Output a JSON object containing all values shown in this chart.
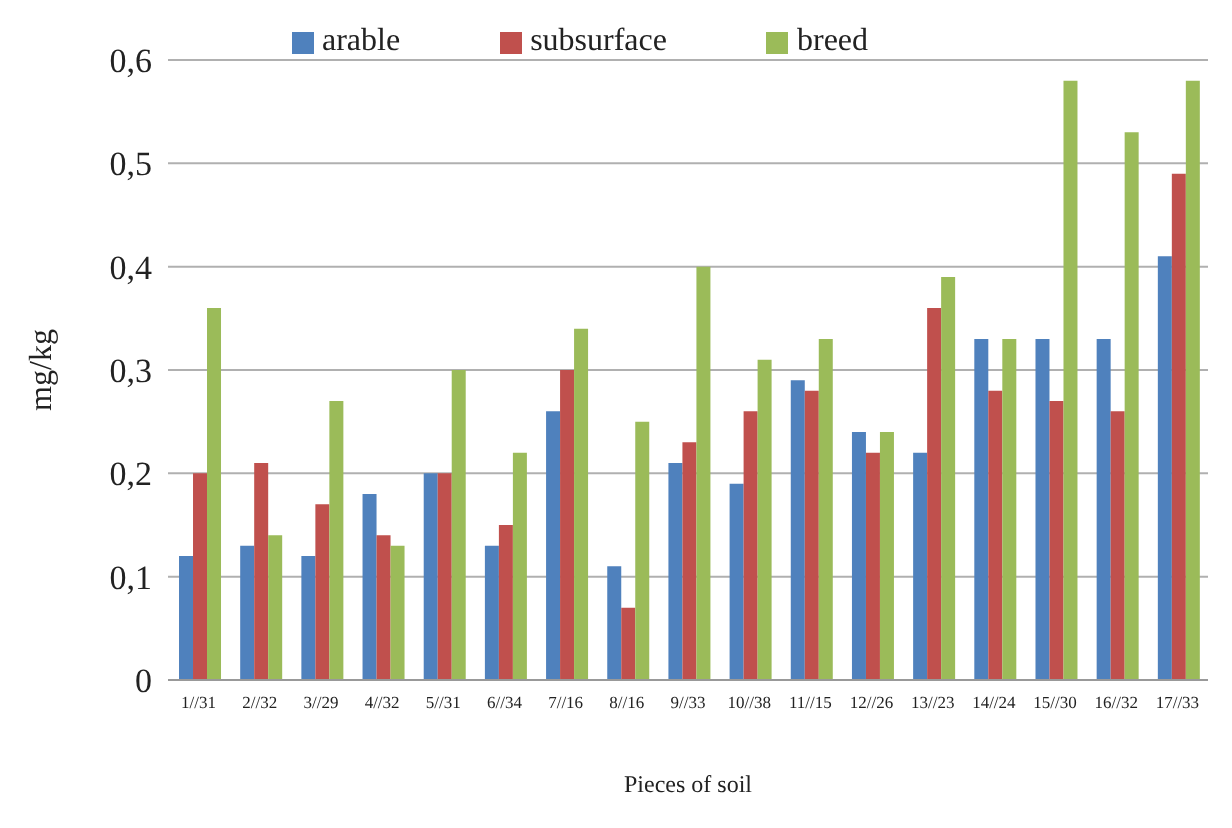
{
  "chart_data": {
    "type": "bar",
    "xlabel": "Pieces of soil",
    "ylabel": "mg/kg",
    "categories": [
      "1//31",
      "2//32",
      "3//29",
      "4//32",
      "5//31",
      "6//34",
      "7//16",
      "8//16",
      "9//33",
      "10//38",
      "11//15",
      "12//26",
      "13//23",
      "14//24",
      "15//30",
      "16//32",
      "17//33"
    ],
    "series": [
      {
        "name": "arable",
        "color": "#4f81bd",
        "values": [
          0.12,
          0.13,
          0.12,
          0.18,
          0.2,
          0.13,
          0.26,
          0.11,
          0.21,
          0.19,
          0.29,
          0.24,
          0.22,
          0.33,
          0.33,
          0.33,
          0.41
        ]
      },
      {
        "name": "subsurface",
        "color": "#c0504d",
        "values": [
          0.2,
          0.21,
          0.17,
          0.14,
          0.2,
          0.15,
          0.3,
          0.07,
          0.23,
          0.26,
          0.28,
          0.22,
          0.36,
          0.28,
          0.27,
          0.26,
          0.49
        ]
      },
      {
        "name": "breed",
        "color": "#9bbb59",
        "values": [
          0.36,
          0.14,
          0.27,
          0.13,
          0.3,
          0.22,
          0.34,
          0.25,
          0.4,
          0.31,
          0.33,
          0.24,
          0.39,
          0.33,
          0.58,
          0.53,
          0.58
        ]
      }
    ],
    "ylim": [
      0,
      0.6
    ],
    "yticks": [
      {
        "value": 0,
        "label": "0"
      },
      {
        "value": 0.1,
        "label": "0,1"
      },
      {
        "value": 0.2,
        "label": "0,2"
      },
      {
        "value": 0.3,
        "label": "0,3"
      },
      {
        "value": 0.4,
        "label": "0,4"
      },
      {
        "value": 0.5,
        "label": "0,5"
      },
      {
        "value": 0.6,
        "label": "0,6"
      }
    ],
    "grid": "y",
    "legend": "top"
  }
}
